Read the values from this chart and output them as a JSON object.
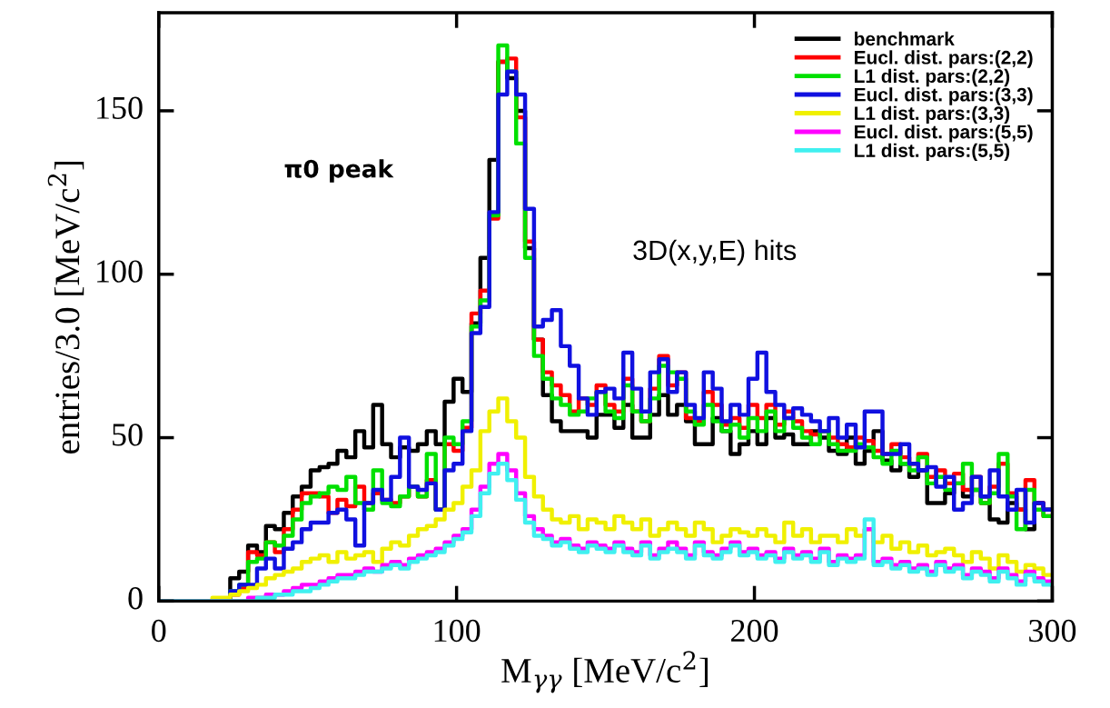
{
  "chart_data": {
    "type": "histogram",
    "xlabel": "M$_{γγ}$ [MeV/c$^{2}$]",
    "ylabel": "entries/3.0 [MeV/c$^{2}$]",
    "annotations": [
      "π0 peak",
      "3D(x,y,E) hits"
    ],
    "bins": [
      0,
      3,
      6,
      9,
      12,
      15,
      18,
      21,
      24,
      27,
      30,
      33,
      36,
      39,
      42,
      45,
      48,
      51,
      54,
      57,
      60,
      63,
      66,
      69,
      72,
      75,
      78,
      81,
      84,
      87,
      90,
      93,
      96,
      99,
      102,
      105,
      108,
      111,
      114,
      117,
      120,
      123,
      126,
      129,
      132,
      135,
      138,
      141,
      144,
      147,
      150,
      153,
      156,
      159,
      162,
      165,
      168,
      171,
      174,
      177,
      180,
      183,
      186,
      189,
      192,
      195,
      198,
      201,
      204,
      207,
      210,
      213,
      216,
      219,
      222,
      225,
      228,
      231,
      234,
      237,
      240,
      243,
      246,
      249,
      252,
      255,
      258,
      261,
      264,
      267,
      270,
      273,
      276,
      279,
      282,
      285,
      288,
      291,
      294,
      297,
      300
    ],
    "series": [
      {
        "name": "benchmark",
        "color": "#000000",
        "values": [
          0,
          0,
          0,
          0,
          0,
          0,
          0,
          0,
          7,
          9,
          17,
          15,
          23,
          22,
          27,
          32,
          35,
          40,
          41,
          42,
          46,
          44,
          52,
          47,
          60,
          48,
          44,
          47,
          46,
          48,
          52,
          48,
          61,
          68,
          64,
          85,
          105,
          135,
          165,
          160,
          150,
          108,
          80,
          63,
          55,
          52,
          52,
          52,
          50,
          57,
          57,
          53,
          60,
          50,
          50,
          57,
          63,
          57,
          60,
          55,
          48,
          48,
          56,
          52,
          45,
          48,
          52,
          48,
          56,
          50,
          51,
          48,
          48,
          52,
          50,
          46,
          45,
          50,
          42,
          46,
          52,
          43,
          40,
          42,
          38,
          40,
          30,
          30,
          33,
          36,
          32,
          34,
          32,
          25,
          24,
          30,
          28,
          22,
          30,
          28
        ]
      },
      {
        "name": "Eucl. dist. pars:(2,2)",
        "color": "#ff0000",
        "values": [
          0,
          0,
          0,
          0,
          0,
          0,
          0,
          0,
          2,
          4,
          15,
          14,
          18,
          15,
          22,
          28,
          33,
          33,
          32,
          27,
          31,
          29,
          35,
          30,
          33,
          31,
          30,
          32,
          35,
          32,
          37,
          28,
          48,
          46,
          53,
          88,
          95,
          117,
          165,
          166,
          148,
          110,
          80,
          70,
          66,
          63,
          58,
          62,
          60,
          66,
          60,
          58,
          68,
          58,
          55,
          65,
          75,
          66,
          70,
          56,
          55,
          64,
          60,
          54,
          56,
          53,
          60,
          56,
          60,
          54,
          58,
          55,
          52,
          51,
          52,
          50,
          48,
          47,
          50,
          49,
          46,
          45,
          48,
          44,
          42,
          45,
          38,
          40,
          36,
          39,
          34,
          38,
          30,
          35,
          42,
          33,
          28,
          37,
          30,
          26
        ]
      },
      {
        "name": "L1 dist. pars:(2,2)",
        "color": "#00e000",
        "values": [
          0,
          0,
          0,
          0,
          0,
          0,
          0,
          0,
          3,
          5,
          12,
          13,
          18,
          17,
          20,
          25,
          30,
          32,
          33,
          35,
          34,
          38,
          30,
          28,
          40,
          30,
          29,
          32,
          35,
          32,
          45,
          28,
          50,
          48,
          55,
          84,
          92,
          118,
          170,
          162,
          140,
          105,
          75,
          68,
          62,
          60,
          57,
          58,
          62,
          64,
          58,
          56,
          66,
          58,
          55,
          62,
          72,
          70,
          68,
          58,
          54,
          60,
          55,
          52,
          54,
          50,
          56,
          52,
          58,
          52,
          56,
          53,
          50,
          48,
          52,
          48,
          46,
          46,
          48,
          47,
          44,
          42,
          46,
          42,
          40,
          44,
          36,
          38,
          34,
          36,
          42,
          34,
          30,
          33,
          45,
          32,
          22,
          34,
          28,
          26
        ]
      },
      {
        "name": "Eucl. dist. pars:(3,3)",
        "color": "#1010e0",
        "values": [
          0,
          0,
          0,
          0,
          0,
          0,
          0,
          0,
          3,
          5,
          5,
          10,
          13,
          10,
          16,
          18,
          22,
          24,
          24,
          27,
          28,
          25,
          17,
          30,
          34,
          31,
          38,
          50,
          35,
          34,
          36,
          28,
          40,
          42,
          52,
          82,
          90,
          119,
          155,
          162,
          155,
          120,
          84,
          86,
          89,
          78,
          72,
          62,
          57,
          64,
          65,
          62,
          76,
          65,
          58,
          70,
          74,
          64,
          70,
          60,
          56,
          70,
          65,
          55,
          60,
          57,
          68,
          76,
          64,
          60,
          56,
          59,
          57,
          55,
          52,
          56,
          50,
          54,
          47,
          58,
          58,
          45,
          45,
          48,
          42,
          40,
          41,
          35,
          38,
          28,
          30,
          38,
          32,
          40,
          32,
          28,
          34,
          24,
          30,
          28
        ]
      },
      {
        "name": "L1 dist. pars:(3,3)",
        "color": "#f0f000",
        "values": [
          0,
          0,
          0,
          0,
          0,
          0,
          1,
          1,
          2,
          3,
          4,
          5,
          7,
          8,
          9,
          10,
          12,
          13,
          14,
          12,
          15,
          13,
          14,
          15,
          12,
          16,
          18,
          17,
          20,
          22,
          23,
          25,
          28,
          30,
          35,
          40,
          52,
          58,
          62,
          55,
          50,
          38,
          32,
          28,
          25,
          24,
          26,
          22,
          25,
          24,
          22,
          26,
          24,
          22,
          25,
          20,
          22,
          24,
          22,
          20,
          24,
          22,
          18,
          20,
          22,
          21,
          20,
          22,
          20,
          18,
          24,
          20,
          22,
          18,
          20,
          20,
          18,
          22,
          20,
          22,
          18,
          20,
          16,
          18,
          15,
          17,
          14,
          15,
          16,
          14,
          12,
          15,
          13,
          10,
          14,
          12,
          9,
          11,
          10,
          8
        ]
      },
      {
        "name": "Eucl. dist. pars:(5,5)",
        "color": "#ff00ff",
        "values": [
          0,
          0,
          0,
          0,
          0,
          0,
          0,
          0,
          0,
          0,
          1,
          1,
          2,
          2,
          3,
          4,
          5,
          5,
          6,
          7,
          8,
          8,
          9,
          10,
          9,
          11,
          12,
          11,
          13,
          14,
          15,
          16,
          18,
          20,
          22,
          28,
          35,
          42,
          45,
          40,
          33,
          26,
          22,
          20,
          18,
          19,
          17,
          16,
          18,
          17,
          16,
          18,
          16,
          15,
          18,
          14,
          16,
          18,
          16,
          14,
          18,
          15,
          14,
          16,
          18,
          15,
          16,
          14,
          15,
          13,
          16,
          14,
          15,
          13,
          16,
          12,
          14,
          13,
          14,
          22,
          12,
          13,
          11,
          12,
          10,
          11,
          9,
          12,
          10,
          11,
          8,
          10,
          9,
          7,
          10,
          8,
          6,
          9,
          7,
          6
        ]
      },
      {
        "name": "L1 dist. pars:(5,5)",
        "color": "#40f0f0",
        "values": [
          0,
          0,
          0,
          0,
          0,
          0,
          0,
          0,
          0,
          0,
          0,
          1,
          1,
          2,
          2,
          3,
          3,
          4,
          5,
          6,
          7,
          7,
          8,
          9,
          9,
          10,
          11,
          10,
          12,
          13,
          14,
          15,
          17,
          19,
          21,
          26,
          33,
          39,
          42,
          37,
          31,
          24,
          20,
          19,
          17,
          18,
          16,
          15,
          17,
          16,
          15,
          17,
          15,
          14,
          17,
          13,
          15,
          16,
          15,
          13,
          17,
          14,
          13,
          15,
          17,
          14,
          15,
          13,
          14,
          12,
          15,
          13,
          14,
          12,
          15,
          11,
          13,
          12,
          13,
          25,
          11,
          12,
          10,
          11,
          9,
          10,
          8,
          11,
          9,
          10,
          7,
          9,
          8,
          6,
          9,
          7,
          5,
          8,
          6,
          5
        ]
      }
    ],
    "xlim": [
      0,
      300
    ],
    "xticks": [
      0,
      100,
      200,
      300
    ],
    "ylim": [
      0,
      180
    ],
    "yticks": [
      0,
      50,
      100,
      150
    ],
    "grid": false,
    "legend": "top right"
  }
}
